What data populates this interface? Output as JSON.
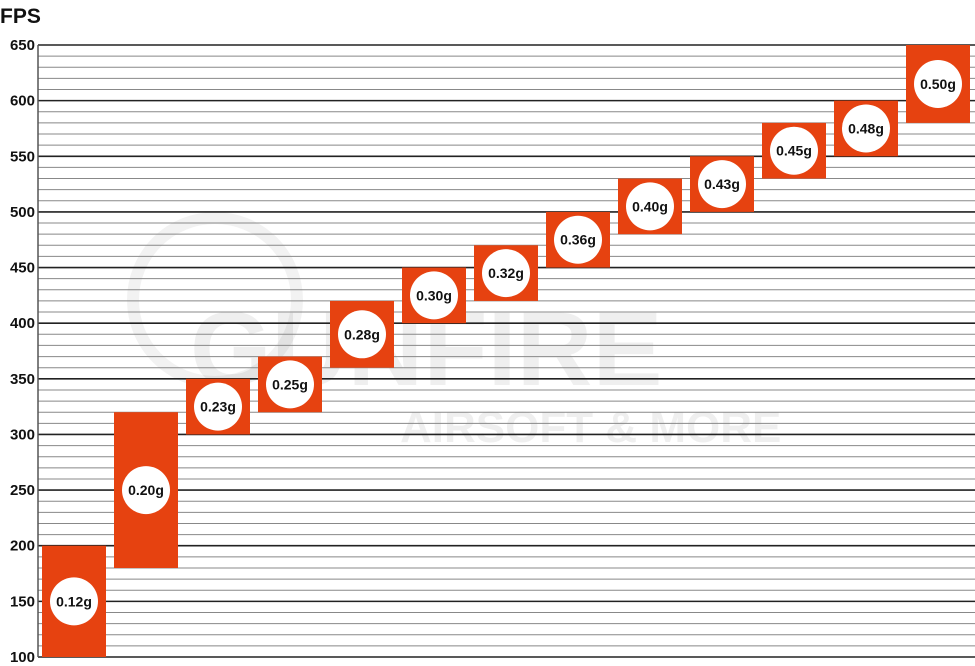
{
  "chart_data": {
    "type": "bar",
    "subtype": "floating-range",
    "title": "FPS",
    "ylabel": "",
    "xlabel": "",
    "ylim": [
      100,
      650
    ],
    "yticks": [
      100,
      150,
      200,
      250,
      300,
      350,
      400,
      450,
      500,
      550,
      600,
      650
    ],
    "grid": true,
    "minor_grid_step": 10,
    "bar_color": "#E64210",
    "categories": [
      "0.12g",
      "0.20g",
      "0.23g",
      "0.25g",
      "0.28g",
      "0.30g",
      "0.32g",
      "0.36g",
      "0.40g",
      "0.43g",
      "0.45g",
      "0.48g",
      "0.50g"
    ],
    "ranges": [
      [
        100,
        200
      ],
      [
        180,
        320
      ],
      [
        300,
        350
      ],
      [
        320,
        370
      ],
      [
        360,
        420
      ],
      [
        400,
        450
      ],
      [
        420,
        470
      ],
      [
        450,
        500
      ],
      [
        480,
        530
      ],
      [
        500,
        550
      ],
      [
        530,
        580
      ],
      [
        550,
        600
      ],
      [
        580,
        650
      ]
    ],
    "watermark": {
      "brand": "GUNFIRE",
      "tagline": "AIRSOFT & MORE"
    }
  }
}
